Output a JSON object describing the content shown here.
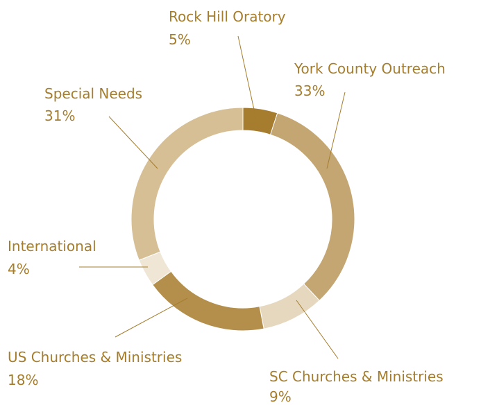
{
  "chart_data": {
    "type": "pie",
    "donut": true,
    "label_color": "#a57d2c",
    "leader_color": "#a57d2c",
    "slices": [
      {
        "label": "Rock Hill Oratory",
        "value": 5,
        "value_label": "5%",
        "color": "#a67c2e"
      },
      {
        "label": "York County Outreach",
        "value": 33,
        "value_label": "33%",
        "color": "#c4a672"
      },
      {
        "label": "SC Churches & Ministries",
        "value": 9,
        "value_label": "9%",
        "color": "#e6d8be"
      },
      {
        "label": "US Churches & Ministries",
        "value": 18,
        "value_label": "18%",
        "color": "#b38f4b"
      },
      {
        "label": "International",
        "value": 4,
        "value_label": "4%",
        "color": "#efe6d6"
      },
      {
        "label": "Special Needs",
        "value": 31,
        "value_label": "31%",
        "color": "#d6bf95"
      }
    ]
  }
}
